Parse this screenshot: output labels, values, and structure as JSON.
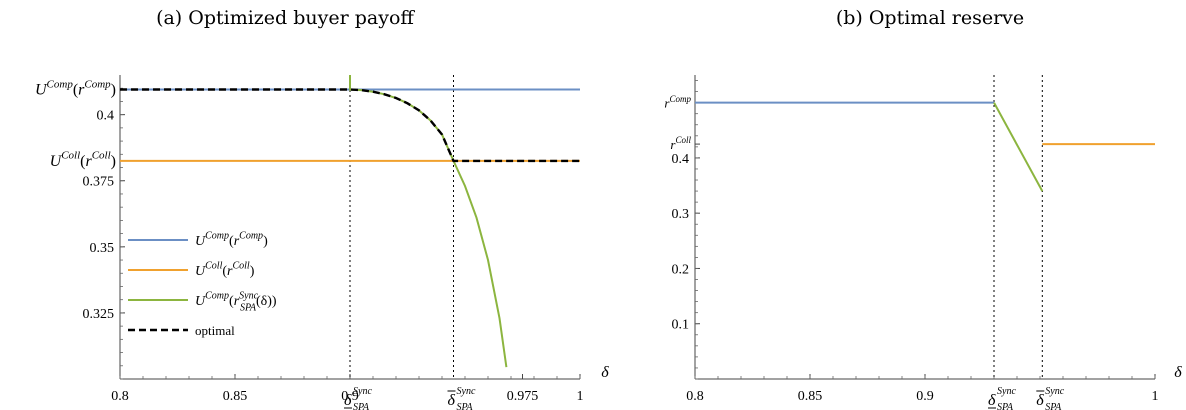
{
  "chart_data": [
    {
      "panel": "a",
      "type": "line",
      "title": "(a) Optimized buyer payoff",
      "xlabel": "δ",
      "ylabel": "",
      "xlim": [
        0.8,
        1.0
      ],
      "ylim": [
        0.3,
        0.415
      ],
      "x_ticks": [
        {
          "value": 0.8,
          "label": "0.8"
        },
        {
          "value": 0.85,
          "label": "0.85"
        },
        {
          "value": 0.9,
          "label": "0.9"
        },
        {
          "value": 0.975,
          "label": "0.975"
        },
        {
          "value": 1.0,
          "label": "1"
        }
      ],
      "x_special_ticks": [
        {
          "value": 0.9,
          "symbol": "δ",
          "mark": "underline",
          "sup": "Sync",
          "sub": "SPA"
        },
        {
          "value": 0.945,
          "symbol": "δ",
          "mark": "overline",
          "sup": "Sync",
          "sub": "SPA"
        }
      ],
      "y_ticks": [
        {
          "value": 0.4,
          "label": "0.4"
        },
        {
          "value": 0.375,
          "label": "0.375"
        },
        {
          "value": 0.35,
          "label": "0.35"
        },
        {
          "value": 0.325,
          "label": "0.325"
        }
      ],
      "y_special_ticks": [
        {
          "value": 0.4095,
          "main": "U",
          "sup": "Comp",
          "paren": "r",
          "parsup": "Comp"
        },
        {
          "value": 0.3825,
          "main": "U",
          "sup": "Coll",
          "paren": "r",
          "parsup": "Coll"
        }
      ],
      "vlines": [
        0.9,
        0.945
      ],
      "legend_position": "left-middle",
      "series": [
        {
          "key": "comp",
          "color": "#6b8fc4",
          "legend": {
            "main": "U",
            "sup": "Comp",
            "paren": "r",
            "parsup": "Comp",
            "parsub": ""
          },
          "x": [
            0.8,
            1.0
          ],
          "y": [
            0.4095,
            0.4095
          ]
        },
        {
          "key": "coll",
          "color": "#f0a12e",
          "legend": {
            "main": "U",
            "sup": "Coll",
            "paren": "r",
            "parsup": "Coll",
            "parsub": ""
          },
          "x": [
            0.8,
            1.0
          ],
          "y": [
            0.3825,
            0.3825
          ]
        },
        {
          "key": "sync",
          "color": "#8cb53f",
          "legend": {
            "main": "U",
            "sup": "Comp",
            "paren": "r",
            "parsup": "Sync",
            "parsub": "SPA",
            "arg": "(δ)"
          },
          "x": [
            0.9,
            0.9,
            0.9,
            0.905,
            0.91,
            0.915,
            0.92,
            0.925,
            0.93,
            0.935,
            0.94,
            0.945,
            0.95,
            0.955,
            0.96,
            0.965,
            0.968
          ],
          "y": [
            0.418,
            0.4095,
            0.4095,
            0.4093,
            0.4087,
            0.4077,
            0.4063,
            0.4043,
            0.4016,
            0.3978,
            0.3925,
            0.3825,
            0.373,
            0.361,
            0.345,
            0.323,
            0.3045
          ]
        },
        {
          "key": "optimal",
          "color": "#000000",
          "dashed": true,
          "legend": {
            "text": "optimal"
          },
          "x": [
            0.8,
            0.9,
            0.905,
            0.91,
            0.915,
            0.92,
            0.925,
            0.93,
            0.935,
            0.94,
            0.945,
            1.0
          ],
          "y": [
            0.4095,
            0.4095,
            0.4093,
            0.4087,
            0.4077,
            0.4063,
            0.4043,
            0.4016,
            0.3978,
            0.3925,
            0.3825,
            0.3825
          ]
        }
      ]
    },
    {
      "panel": "b",
      "type": "line",
      "title": "(b) Optimal reserve",
      "xlabel": "δ",
      "ylabel": "",
      "xlim": [
        0.8,
        1.0
      ],
      "ylim": [
        0.0,
        0.55
      ],
      "x_ticks": [
        {
          "value": 0.8,
          "label": "0.8"
        },
        {
          "value": 0.85,
          "label": "0.85"
        },
        {
          "value": 0.9,
          "label": "0.9"
        },
        {
          "value": 1.0,
          "label": "1"
        }
      ],
      "x_special_ticks": [
        {
          "value": 0.93,
          "symbol": "δ",
          "mark": "underline",
          "sup": "Sync",
          "sub": "SPA"
        },
        {
          "value": 0.951,
          "symbol": "δ",
          "mark": "overline",
          "sup": "Sync",
          "sub": "SPA"
        }
      ],
      "y_ticks": [
        {
          "value": 0.4,
          "label": "0.4"
        },
        {
          "value": 0.3,
          "label": "0.3"
        },
        {
          "value": 0.2,
          "label": "0.2"
        },
        {
          "value": 0.1,
          "label": "0.1"
        }
      ],
      "y_special_ticks": [
        {
          "value": 0.5,
          "main": "r",
          "sup": "Comp"
        },
        {
          "value": 0.425,
          "main": "r",
          "sup": "Coll"
        }
      ],
      "vlines": [
        0.93,
        0.951
      ],
      "series": [
        {
          "key": "comp",
          "color": "#6b8fc4",
          "x": [
            0.8,
            0.93
          ],
          "y": [
            0.5,
            0.5
          ]
        },
        {
          "key": "sync",
          "color": "#8cb53f",
          "x": [
            0.93,
            0.951
          ],
          "y": [
            0.5,
            0.34
          ]
        },
        {
          "key": "coll",
          "color": "#f0a12e",
          "x": [
            0.951,
            1.0
          ],
          "y": [
            0.425,
            0.425
          ]
        }
      ]
    }
  ]
}
